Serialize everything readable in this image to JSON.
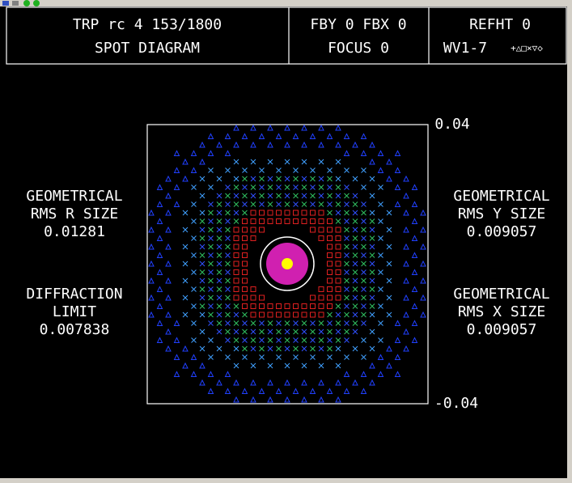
{
  "header": {
    "title": "TRP rc 4 153/1800",
    "subtitle": "SPOT DIAGRAM",
    "field": "FBY 0 FBX 0",
    "focus": "FOCUS 0",
    "refht": "REFHT 0",
    "wavelengths": "WV1-7",
    "symbols": "+△□×▽◇"
  },
  "plot": {
    "top_label": "0.04",
    "bottom_label": "-0.04"
  },
  "left_stats": [
    {
      "line1": "GEOMETRICAL",
      "line2": "RMS R SIZE",
      "value": "0.01281"
    },
    {
      "line1": "DIFFRACTION",
      "line2": "LIMIT",
      "value": "0.007838"
    }
  ],
  "right_stats": [
    {
      "line1": "GEOMETRICAL",
      "line2": "RMS Y SIZE",
      "value": "0.009057"
    },
    {
      "line1": "GEOMETRICAL",
      "line2": "RMS X SIZE",
      "value": "0.009057"
    }
  ]
}
